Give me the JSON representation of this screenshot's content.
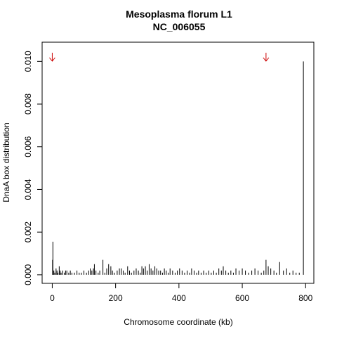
{
  "chart_data": {
    "type": "spike",
    "title": [
      "Mesoplasma florum L1",
      "NC_006055"
    ],
    "x_label": "Chromosome coordinate (kb)",
    "y_label": "DnaA box distribution",
    "color": "#000000",
    "x": [
      1,
      2,
      5,
      8,
      12,
      15,
      18,
      22,
      25,
      28,
      33,
      38,
      42,
      46,
      52,
      57,
      62,
      70,
      78,
      85,
      92,
      100,
      108,
      115,
      120,
      125,
      130,
      133,
      138,
      145,
      150,
      160,
      166,
      172,
      178,
      185,
      190,
      196,
      205,
      212,
      218,
      224,
      230,
      238,
      244,
      250,
      258,
      265,
      272,
      278,
      283,
      288,
      294,
      300,
      306,
      312,
      318,
      324,
      330,
      336,
      342,
      348,
      354,
      360,
      366,
      372,
      380,
      388,
      395,
      402,
      410,
      418,
      426,
      434,
      440,
      448,
      456,
      462,
      470,
      478,
      486,
      494,
      502,
      510,
      518,
      526,
      534,
      540,
      548,
      556,
      564,
      572,
      580,
      590,
      600,
      610,
      620,
      630,
      640,
      650,
      660,
      668,
      675,
      682,
      690,
      700,
      708,
      718,
      730,
      740,
      750,
      760,
      770,
      780,
      793
    ],
    "values": [
      0.0007,
      0.00155,
      0.0002,
      0.0001,
      0.0003,
      0.0002,
      0.0001,
      0.0004,
      0.0002,
      0.0001,
      0.0002,
      0.0001,
      0.0002,
      0.0002,
      0.0001,
      0.0002,
      0.0001,
      0.0001,
      0.0002,
      0.0001,
      0.0001,
      0.0002,
      0.0001,
      0.0002,
      0.0003,
      0.0002,
      0.0003,
      0.0005,
      0.0002,
      0.0001,
      0.0002,
      0.0007,
      0.0001,
      0.0003,
      0.0005,
      0.0004,
      0.0002,
      0.0001,
      0.0002,
      0.0003,
      0.0003,
      0.0002,
      0.0001,
      0.0004,
      0.0002,
      0.0001,
      0.0002,
      0.0003,
      0.0002,
      0.0001,
      0.0004,
      0.0003,
      0.0004,
      0.0002,
      0.0005,
      0.0003,
      0.0002,
      0.0004,
      0.0003,
      0.0002,
      0.0002,
      0.0001,
      0.0003,
      0.0002,
      0.0001,
      0.0003,
      0.0002,
      0.0001,
      0.0002,
      0.0003,
      0.0002,
      0.0001,
      0.0002,
      0.0001,
      0.0003,
      0.0002,
      0.0001,
      0.0002,
      0.0001,
      0.0002,
      0.0001,
      0.0002,
      0.0001,
      0.0002,
      0.0001,
      0.0003,
      0.0002,
      0.0004,
      0.0002,
      0.0001,
      0.0002,
      0.0001,
      0.0003,
      0.0002,
      0.0003,
      0.0002,
      0.0001,
      0.0002,
      0.0003,
      0.0002,
      0.0001,
      0.0002,
      0.0007,
      0.0004,
      0.0003,
      0.0002,
      0.0001,
      0.0006,
      0.0002,
      0.0003,
      0.0001,
      0.0002,
      0.0001,
      0.0001,
      0.01
    ],
    "arrows": {
      "x": [
        0,
        675
      ],
      "color": "#cc0000"
    },
    "xlim": [
      -32,
      826
    ],
    "xticks": [
      0,
      200,
      400,
      600,
      800
    ],
    "ylim": [
      -0.0004,
      0.0109
    ],
    "yticks": [
      {
        "value": 0,
        "label": "0.000"
      },
      0.002,
      0.004,
      0.006,
      0.008,
      {
        "value": 0.01,
        "label": "0.010"
      }
    ]
  }
}
